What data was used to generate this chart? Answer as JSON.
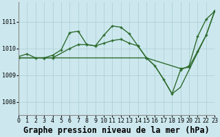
{
  "background_color": "#cce8ee",
  "grid_color": "#aaccd4",
  "line_color": "#2d6a2d",
  "xlim": [
    0,
    23
  ],
  "ylim": [
    1007.5,
    1011.75
  ],
  "yticks": [
    1008,
    1009,
    1010,
    1011
  ],
  "xticks": [
    0,
    1,
    2,
    3,
    4,
    5,
    6,
    7,
    8,
    9,
    10,
    11,
    12,
    13,
    14,
    15,
    16,
    17,
    18,
    19,
    20,
    21,
    22,
    23
  ],
  "xlabel": "Graphe pression niveau de la mer (hPa)",
  "font_family": "monospace",
  "title_fontsize": 8.5,
  "tick_fontsize": 6.0,
  "line_width": 1.0,
  "s1_x": [
    0,
    1,
    2,
    3,
    4,
    5,
    6,
    7,
    8,
    9,
    10,
    11,
    12,
    13,
    14,
    15,
    16,
    17,
    18,
    19,
    20,
    21,
    22,
    23
  ],
  "s1_y": [
    1009.7,
    1009.8,
    1009.65,
    1009.65,
    1009.75,
    1009.95,
    1010.6,
    1010.65,
    1010.15,
    1010.1,
    1010.5,
    1010.85,
    1010.8,
    1010.55,
    1010.1,
    1009.65,
    1009.35,
    1008.85,
    1008.3,
    1009.2,
    1009.35,
    1010.45,
    1011.1,
    1011.4
  ],
  "s2_x": [
    0,
    3,
    4,
    6,
    7,
    8,
    9,
    10,
    11,
    12,
    13,
    14,
    15,
    19,
    20,
    21,
    22,
    23
  ],
  "s2_y": [
    1009.65,
    1009.65,
    1009.65,
    1010.0,
    1010.15,
    1010.15,
    1010.1,
    1010.2,
    1010.3,
    1010.35,
    1010.2,
    1010.1,
    1009.65,
    1009.25,
    1009.3,
    1009.9,
    1010.5,
    1011.4
  ],
  "s3_x": [
    0,
    3,
    14,
    15,
    16,
    17,
    18,
    19,
    20,
    22,
    23
  ],
  "s3_y": [
    1009.65,
    1009.65,
    1009.65,
    1009.65,
    1009.35,
    1008.85,
    1008.3,
    1008.55,
    1009.2,
    1010.5,
    1011.4
  ]
}
